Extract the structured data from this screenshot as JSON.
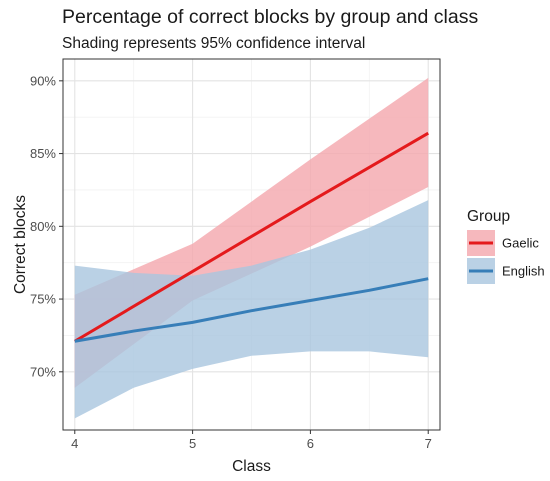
{
  "title": "Percentage of correct blocks by group and class",
  "subtitle": "Shading represents 95% confidence interval",
  "colors": {
    "gaelic": "#e41a1c",
    "gaelic_band": "#f4a6ad",
    "english": "#377eb8",
    "english_band": "#a9c6df",
    "grid_major": "#e3e3e3",
    "grid_minor": "#f2f2f2",
    "panel_border": "#333333"
  },
  "chart_data": {
    "type": "line",
    "xlabel": "Class",
    "ylabel": "Correct blocks",
    "xlim": [
      3.9,
      7.1
    ],
    "ylim": [
      66.0,
      91.5
    ],
    "x_ticks": [
      4,
      5,
      6,
      7
    ],
    "x_tick_labels": [
      "4",
      "5",
      "6",
      "7"
    ],
    "y_ticks": [
      70,
      75,
      80,
      85,
      90
    ],
    "y_tick_labels": [
      "70%",
      "75%",
      "80%",
      "85%",
      "90%"
    ],
    "grid": true,
    "legend": {
      "title": "Group",
      "placement": "right"
    },
    "series": [
      {
        "name": "Gaelic",
        "color": "#e41a1c",
        "band_color": "#f4a6ad",
        "x": [
          4,
          5,
          6,
          7
        ],
        "y": [
          72.1,
          76.9,
          81.7,
          86.4
        ],
        "lower": [
          68.9,
          74.9,
          78.6,
          82.7
        ],
        "upper": [
          75.3,
          78.8,
          84.6,
          90.2
        ]
      },
      {
        "name": "English",
        "color": "#377eb8",
        "band_color": "#a9c6df",
        "x": [
          4,
          4.5,
          5,
          5.5,
          6,
          6.5,
          7
        ],
        "y": [
          72.1,
          72.8,
          73.4,
          74.2,
          74.9,
          75.6,
          76.4
        ],
        "lower": [
          66.8,
          68.9,
          70.2,
          71.1,
          71.4,
          71.4,
          71.0
        ],
        "upper": [
          77.3,
          76.8,
          76.6,
          77.3,
          78.4,
          79.9,
          81.8
        ]
      }
    ]
  }
}
